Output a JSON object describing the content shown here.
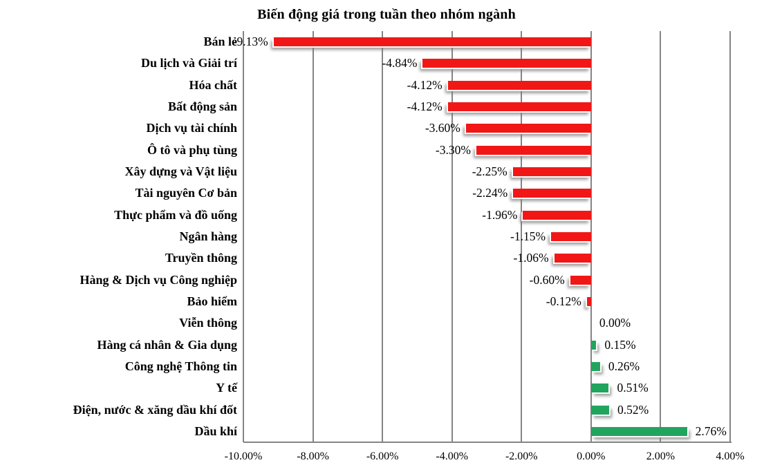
{
  "chart_data": {
    "type": "bar",
    "orientation": "horizontal",
    "title": "Biến động giá trong tuần theo nhóm ngành",
    "categories": [
      "Bán lẻ",
      "Du lịch và Giải trí",
      "Hóa chất",
      "Bất động sản",
      "Dịch vụ tài chính",
      "Ô tô và phụ tùng",
      "Xây dựng và Vật liệu",
      "Tài nguyên Cơ bản",
      "Thực phẩm và đồ uống",
      "Ngân hàng",
      "Truyền thông",
      "Hàng & Dịch vụ Công nghiệp",
      "Bảo hiểm",
      "Viễn thông",
      "Hàng cá nhân & Gia dụng",
      "Công nghệ Thông tin",
      "Y tế",
      "Điện, nước & xăng dầu khí đốt",
      "Dầu khí"
    ],
    "values": [
      -9.13,
      -4.84,
      -4.12,
      -4.12,
      -3.6,
      -3.3,
      -2.25,
      -2.24,
      -1.96,
      -1.15,
      -1.06,
      -0.6,
      -0.12,
      0.0,
      0.15,
      0.26,
      0.51,
      0.52,
      2.76
    ],
    "value_labels": [
      "-9.13%",
      "-4.84%",
      "-4.12%",
      "-4.12%",
      "-3.60%",
      "-3.30%",
      "-2.25%",
      "-2.24%",
      "-1.96%",
      "-1.15%",
      "-1.06%",
      "-0.60%",
      "-0.12%",
      "0.00%",
      "0.15%",
      "0.26%",
      "0.51%",
      "0.52%",
      "2.76%"
    ],
    "xlim": [
      -10,
      4
    ],
    "x_tick_values": [
      -10,
      -8,
      -6,
      -4,
      -2,
      0,
      2,
      4
    ],
    "x_tick_labels": [
      "-10.00%",
      "-8.00%",
      "-6.00%",
      "-4.00%",
      "-2.00%",
      "0.00%",
      "2.00%",
      "4.00%"
    ],
    "grid": true,
    "legend": false,
    "colors": {
      "negative_bar": "#f21717",
      "positive_bar": "#21a55e",
      "gridline": "#848484",
      "text": "#000000",
      "background": "#ffffff"
    }
  }
}
